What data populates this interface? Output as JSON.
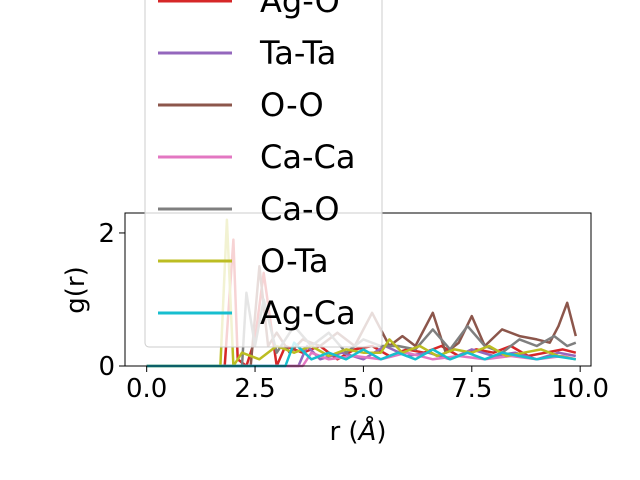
{
  "chart_data": {
    "type": "line",
    "title": "",
    "xlabel": "r (",
    "xlabel_symbol": "Å",
    "xlabel_close": ")",
    "ylabel": "g(r)",
    "xlim": [
      -0.5,
      10.25
    ],
    "ylim": [
      0,
      2.3
    ],
    "xticks": [
      0.0,
      2.5,
      5.0,
      7.5,
      10.0
    ],
    "xtick_labels": [
      "0.0",
      "2.5",
      "5.0",
      "7.5",
      "10.0"
    ],
    "yticks": [
      0,
      2
    ],
    "ytick_labels": [
      "0",
      "2"
    ],
    "legend_position": "upper-left, extends above plot area",
    "series": [
      {
        "name": "Ag-O",
        "color": "#d62728",
        "x": [
          0.0,
          1.8,
          2.0,
          2.1,
          2.3,
          2.5,
          2.7,
          3.0,
          3.2,
          3.6,
          4.0,
          4.4,
          4.8,
          5.2,
          5.6,
          6.0,
          6.4,
          6.8,
          7.2,
          7.6,
          8.0,
          8.4,
          8.8,
          9.2,
          9.6,
          9.9
        ],
        "y": [
          0.0,
          0.0,
          1.9,
          0.1,
          0.0,
          0.4,
          1.4,
          0.0,
          0.3,
          0.2,
          0.3,
          0.1,
          0.25,
          0.3,
          0.15,
          0.25,
          0.2,
          0.3,
          0.15,
          0.25,
          0.2,
          0.3,
          0.15,
          0.2,
          0.25,
          0.2
        ]
      },
      {
        "name": "Ta-Ta",
        "color": "#9467bd",
        "x": [
          0.0,
          3.5,
          3.7,
          4.0,
          4.5,
          5.0,
          5.5,
          6.0,
          6.5,
          7.0,
          7.5,
          8.0,
          8.5,
          9.0,
          9.5,
          9.9
        ],
        "y": [
          0.0,
          0.0,
          0.3,
          0.1,
          0.2,
          0.1,
          0.3,
          0.15,
          0.2,
          0.1,
          0.25,
          0.15,
          0.2,
          0.1,
          0.2,
          0.15
        ]
      },
      {
        "name": "O-O",
        "color": "#8c564b",
        "x": [
          0.0,
          2.4,
          2.6,
          2.8,
          3.0,
          3.3,
          3.6,
          4.0,
          4.4,
          4.8,
          5.2,
          5.6,
          5.9,
          6.2,
          6.6,
          6.9,
          7.2,
          7.5,
          7.8,
          8.2,
          8.6,
          9.0,
          9.3,
          9.5,
          9.7,
          9.9
        ],
        "y": [
          0.0,
          0.0,
          1.5,
          0.3,
          0.5,
          0.2,
          0.4,
          0.3,
          0.5,
          0.3,
          0.8,
          0.3,
          0.45,
          0.3,
          0.8,
          0.2,
          0.35,
          0.75,
          0.3,
          0.55,
          0.45,
          0.4,
          0.35,
          0.6,
          0.95,
          0.45
        ]
      },
      {
        "name": "Ca-Ca",
        "color": "#e377c2",
        "x": [
          0.0,
          3.6,
          3.8,
          4.2,
          4.8,
          5.4,
          6.0,
          6.6,
          7.2,
          7.8,
          8.4,
          9.0,
          9.6,
          9.9
        ],
        "y": [
          0.0,
          0.0,
          0.2,
          0.1,
          0.15,
          0.1,
          0.2,
          0.1,
          0.15,
          0.1,
          0.15,
          0.1,
          0.15,
          0.1
        ]
      },
      {
        "name": "Ca-O",
        "color": "#7f7f7f",
        "x": [
          0.0,
          2.2,
          2.3,
          2.5,
          2.7,
          3.0,
          3.4,
          3.8,
          4.2,
          4.6,
          5.0,
          5.4,
          5.8,
          6.2,
          6.6,
          7.0,
          7.4,
          7.8,
          8.2,
          8.6,
          9.0,
          9.4,
          9.7,
          9.9
        ],
        "y": [
          0.0,
          0.0,
          1.1,
          0.3,
          1.0,
          0.2,
          0.6,
          0.3,
          0.5,
          0.2,
          0.4,
          0.3,
          0.3,
          0.25,
          0.55,
          0.25,
          0.6,
          0.3,
          0.2,
          0.4,
          0.3,
          0.45,
          0.3,
          0.35
        ]
      },
      {
        "name": "O-Ta",
        "color": "#bcbd22",
        "x": [
          0.0,
          1.7,
          1.85,
          2.0,
          2.2,
          2.6,
          3.0,
          3.4,
          3.8,
          4.2,
          4.6,
          5.0,
          5.4,
          5.6,
          5.9,
          6.3,
          6.7,
          7.1,
          7.5,
          7.9,
          8.3,
          8.7,
          9.1,
          9.5,
          9.9
        ],
        "y": [
          0.0,
          0.0,
          2.2,
          0.0,
          0.2,
          0.1,
          0.3,
          0.2,
          0.3,
          0.15,
          0.25,
          0.2,
          0.2,
          0.4,
          0.2,
          0.3,
          0.15,
          0.25,
          0.2,
          0.3,
          0.15,
          0.2,
          0.25,
          0.15,
          0.1
        ]
      },
      {
        "name": "Ag-Ca",
        "color": "#17becf",
        "x": [
          0.0,
          3.2,
          3.4,
          3.8,
          4.2,
          4.6,
          5.0,
          5.4,
          5.8,
          6.2,
          6.6,
          7.0,
          7.4,
          7.8,
          8.2,
          8.6,
          9.0,
          9.4,
          9.9
        ],
        "y": [
          0.0,
          0.0,
          0.35,
          0.1,
          0.2,
          0.1,
          0.25,
          0.1,
          0.2,
          0.1,
          0.25,
          0.1,
          0.2,
          0.1,
          0.2,
          0.15,
          0.1,
          0.15,
          0.1
        ]
      }
    ]
  }
}
